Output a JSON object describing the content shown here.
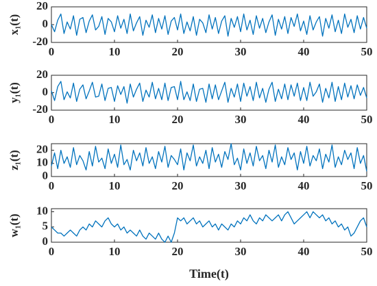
{
  "chart_data": [
    {
      "type": "line",
      "ylabel": "x₁(t)",
      "x": [
        0,
        0.5,
        1,
        1.5,
        2,
        2.5,
        3,
        3.5,
        4,
        4.5,
        5,
        5.5,
        6,
        6.5,
        7,
        7.5,
        8,
        8.5,
        9,
        9.5,
        10,
        10.5,
        11,
        11.5,
        12,
        12.5,
        13,
        13.5,
        14,
        14.5,
        15,
        15.5,
        16,
        16.5,
        17,
        17.5,
        18,
        18.5,
        19,
        19.5,
        20,
        20.5,
        21,
        21.5,
        22,
        22.5,
        23,
        23.5,
        24,
        24.5,
        25,
        25.5,
        26,
        26.5,
        27,
        27.5,
        28,
        28.5,
        29,
        29.5,
        30,
        30.5,
        31,
        31.5,
        32,
        32.5,
        33,
        33.5,
        34,
        34.5,
        35,
        35.5,
        36,
        36.5,
        37,
        37.5,
        38,
        38.5,
        39,
        39.5,
        40,
        40.5,
        41,
        41.5,
        42,
        42.5,
        43,
        43.5,
        44,
        44.5,
        45,
        45.5,
        46,
        46.5,
        47,
        47.5,
        48,
        48.5,
        49,
        49.5,
        50
      ],
      "series": [
        {
          "color": "#0072bd",
          "values": [
            0,
            -8,
            5,
            12,
            -10,
            3,
            -5,
            10,
            -12,
            6,
            8,
            -9,
            4,
            11,
            -6,
            -2,
            9,
            -11,
            7,
            3,
            -8,
            10,
            -4,
            6,
            -10,
            12,
            -7,
            2,
            9,
            -12,
            5,
            -3,
            11,
            -9,
            7,
            -5,
            10,
            -11,
            4,
            8,
            -6,
            12,
            -10,
            3,
            -7,
            9,
            -12,
            6,
            2,
            -9,
            11,
            -5,
            8,
            -10,
            4,
            10,
            -13,
            7,
            -3,
            9,
            -8,
            12,
            -6,
            5,
            -11,
            10,
            -4,
            7,
            -9,
            3,
            11,
            -12,
            6,
            -5,
            9,
            -10,
            8,
            -2,
            12,
            -7,
            4,
            -11,
            10,
            -6,
            3,
            9,
            -13,
            7,
            -4,
            11,
            -8,
            5,
            -10,
            12,
            -3,
            6,
            -9,
            10,
            -5,
            8,
            -4
          ]
        }
      ],
      "xlim": [
        0,
        50
      ],
      "xticks": [
        0,
        10,
        20,
        30,
        40,
        50
      ],
      "ylim": [
        -20,
        20
      ],
      "yticks": [
        -20,
        0,
        20
      ]
    },
    {
      "type": "line",
      "ylabel": "y₁(t)",
      "x": [
        0,
        0.5,
        1,
        1.5,
        2,
        2.5,
        3,
        3.5,
        4,
        4.5,
        5,
        5.5,
        6,
        6.5,
        7,
        7.5,
        8,
        8.5,
        9,
        9.5,
        10,
        10.5,
        11,
        11.5,
        12,
        12.5,
        13,
        13.5,
        14,
        14.5,
        15,
        15.5,
        16,
        16.5,
        17,
        17.5,
        18,
        18.5,
        19,
        19.5,
        20,
        20.5,
        21,
        21.5,
        22,
        22.5,
        23,
        23.5,
        24,
        24.5,
        25,
        25.5,
        26,
        26.5,
        27,
        27.5,
        28,
        28.5,
        29,
        29.5,
        30,
        30.5,
        31,
        31.5,
        32,
        32.5,
        33,
        33.5,
        34,
        34.5,
        35,
        35.5,
        36,
        36.5,
        37,
        37.5,
        38,
        38.5,
        39,
        39.5,
        40,
        40.5,
        41,
        41.5,
        42,
        42.5,
        43,
        43.5,
        44,
        44.5,
        45,
        45.5,
        46,
        46.5,
        47,
        47.5,
        48,
        48.5,
        49,
        49.5,
        50
      ],
      "series": [
        {
          "color": "#0072bd",
          "values": [
            2,
            -9,
            7,
            13,
            -8,
            1,
            -6,
            11,
            -10,
            4,
            9,
            -7,
            2,
            12,
            -5,
            -4,
            10,
            -9,
            5,
            6,
            -10,
            8,
            -2,
            7,
            -12,
            10,
            -5,
            4,
            11,
            -10,
            3,
            -5,
            12,
            -7,
            5,
            -8,
            11,
            -9,
            6,
            7,
            -8,
            13,
            -8,
            1,
            -9,
            10,
            -10,
            4,
            5,
            -11,
            10,
            -7,
            9,
            -8,
            2,
            12,
            -11,
            5,
            -5,
            10,
            -10,
            11,
            -4,
            7,
            -9,
            12,
            -6,
            5,
            -11,
            4,
            12,
            -10,
            4,
            -7,
            10,
            -8,
            9,
            -4,
            11,
            -9,
            6,
            -9,
            12,
            -4,
            1,
            10,
            -11,
            5,
            -6,
            12,
            -10,
            7,
            -8,
            11,
            -5,
            8,
            -7,
            9,
            -3,
            6,
            -6
          ]
        }
      ],
      "xlim": [
        0,
        50
      ],
      "xticks": [
        0,
        10,
        20,
        30,
        40,
        50
      ],
      "ylim": [
        -20,
        20
      ],
      "yticks": [
        -20,
        0,
        20
      ]
    },
    {
      "type": "line",
      "ylabel": "z₁(t)",
      "x": [
        0,
        0.5,
        1,
        1.5,
        2,
        2.5,
        3,
        3.5,
        4,
        4.5,
        5,
        5.5,
        6,
        6.5,
        7,
        7.5,
        8,
        8.5,
        9,
        9.5,
        10,
        10.5,
        11,
        11.5,
        12,
        12.5,
        13,
        13.5,
        14,
        14.5,
        15,
        15.5,
        16,
        16.5,
        17,
        17.5,
        18,
        18.5,
        19,
        19.5,
        20,
        20.5,
        21,
        21.5,
        22,
        22.5,
        23,
        23.5,
        24,
        24.5,
        25,
        25.5,
        26,
        26.5,
        27,
        27.5,
        28,
        28.5,
        29,
        29.5,
        30,
        30.5,
        31,
        31.5,
        32,
        32.5,
        33,
        33.5,
        34,
        34.5,
        35,
        35.5,
        36,
        36.5,
        37,
        37.5,
        38,
        38.5,
        39,
        39.5,
        40,
        40.5,
        41,
        41.5,
        42,
        42.5,
        43,
        43.5,
        44,
        44.5,
        45,
        45.5,
        46,
        46.5,
        47,
        47.5,
        48,
        48.5,
        49,
        49.5,
        50
      ],
      "series": [
        {
          "color": "#0072bd",
          "values": [
            8,
            18,
            6,
            20,
            10,
            15,
            7,
            22,
            9,
            16,
            12,
            5,
            19,
            8,
            23,
            11,
            14,
            6,
            21,
            10,
            17,
            7,
            24,
            9,
            13,
            5,
            20,
            12,
            18,
            8,
            22,
            10,
            15,
            6,
            19,
            11,
            23,
            7,
            16,
            13,
            9,
            21,
            5,
            18,
            12,
            24,
            8,
            15,
            10,
            20,
            6,
            22,
            11,
            17,
            7,
            19,
            13,
            25,
            9,
            14,
            5,
            21,
            10,
            18,
            8,
            23,
            12,
            16,
            6,
            20,
            11,
            24,
            7,
            15,
            9,
            22,
            13,
            18,
            5,
            19,
            10,
            23,
            8,
            16,
            12,
            21,
            6,
            17,
            11,
            24,
            7,
            15,
            9,
            20,
            13,
            18,
            6,
            22,
            10,
            16,
            4
          ]
        }
      ],
      "xlim": [
        0,
        50
      ],
      "xticks": [
        0,
        10,
        20,
        30,
        40,
        50
      ],
      "ylim": [
        0,
        25
      ],
      "yticks": [
        0,
        10,
        20
      ]
    },
    {
      "type": "line",
      "ylabel": "w₁(t)",
      "xlabel": "Time(t)",
      "x": [
        0,
        0.5,
        1,
        1.5,
        2,
        2.5,
        3,
        3.5,
        4,
        4.5,
        5,
        5.5,
        6,
        6.5,
        7,
        7.5,
        8,
        8.5,
        9,
        9.5,
        10,
        10.5,
        11,
        11.5,
        12,
        12.5,
        13,
        13.5,
        14,
        14.5,
        15,
        15.5,
        16,
        16.5,
        17,
        17.5,
        18,
        18.5,
        19,
        19.5,
        20,
        20.5,
        21,
        21.5,
        22,
        22.5,
        23,
        23.5,
        24,
        24.5,
        25,
        25.5,
        26,
        26.5,
        27,
        27.5,
        28,
        28.5,
        29,
        29.5,
        30,
        30.5,
        31,
        31.5,
        32,
        32.5,
        33,
        33.5,
        34,
        34.5,
        35,
        35.5,
        36,
        36.5,
        37,
        37.5,
        38,
        38.5,
        39,
        39.5,
        40,
        40.5,
        41,
        41.5,
        42,
        42.5,
        43,
        43.5,
        44,
        44.5,
        45,
        45.5,
        46,
        46.5,
        47,
        47.5,
        48,
        48.5,
        49,
        49.5,
        50
      ],
      "series": [
        {
          "color": "#0072bd",
          "values": [
            5,
            4,
            3,
            3,
            2,
            3,
            4,
            3,
            2,
            4,
            5,
            4,
            6,
            5,
            7,
            6,
            5,
            7,
            8,
            6,
            5,
            6,
            4,
            5,
            3,
            4,
            3,
            2,
            4,
            2,
            1,
            3,
            2,
            1,
            3,
            1,
            0,
            2,
            0,
            3,
            8,
            7,
            8,
            6,
            7,
            8,
            6,
            7,
            5,
            6,
            7,
            5,
            6,
            4,
            6,
            5,
            4,
            6,
            5,
            7,
            6,
            8,
            7,
            9,
            7,
            6,
            8,
            7,
            9,
            8,
            7,
            8,
            9,
            7,
            9,
            10,
            8,
            6,
            7,
            8,
            9,
            10,
            8,
            10,
            9,
            8,
            9,
            7,
            8,
            6,
            7,
            5,
            6,
            4,
            5,
            2,
            3,
            5,
            7,
            8,
            5
          ]
        }
      ],
      "xlim": [
        0,
        50
      ],
      "xticks": [
        0,
        10,
        20,
        30,
        40,
        50
      ],
      "ylim": [
        0,
        11
      ],
      "yticks": [
        0,
        5,
        10
      ]
    }
  ]
}
